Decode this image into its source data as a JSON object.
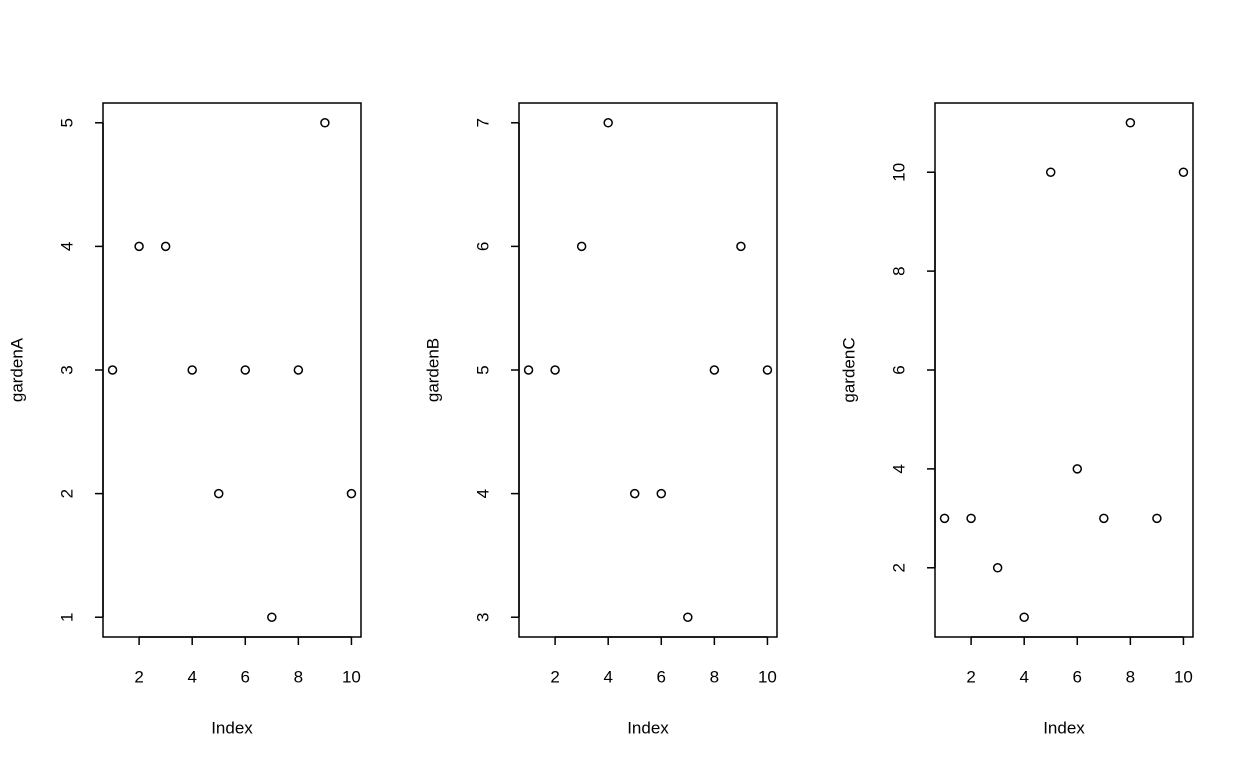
{
  "chart_data": [
    {
      "type": "scatter",
      "xlabel": "Index",
      "ylabel": "gardenA",
      "x": [
        1,
        2,
        3,
        4,
        5,
        6,
        7,
        8,
        9,
        10
      ],
      "values": [
        3,
        4,
        4,
        3,
        2,
        3,
        1,
        3,
        5,
        2
      ],
      "xlim": [
        0.64,
        10.36
      ],
      "ylim": [
        0.84,
        5.16
      ],
      "xticks": [
        2,
        4,
        6,
        8,
        10
      ],
      "yticks": [
        1,
        2,
        3,
        4,
        5
      ],
      "color": "#000000"
    },
    {
      "type": "scatter",
      "xlabel": "Index",
      "ylabel": "gardenB",
      "x": [
        1,
        2,
        3,
        4,
        5,
        6,
        7,
        8,
        9,
        10
      ],
      "values": [
        5,
        5,
        6,
        7,
        4,
        4,
        3,
        5,
        6,
        5
      ],
      "xlim": [
        0.64,
        10.36
      ],
      "ylim": [
        2.84,
        7.16
      ],
      "xticks": [
        2,
        4,
        6,
        8,
        10
      ],
      "yticks": [
        3,
        4,
        5,
        6,
        7
      ],
      "color": "#000000"
    },
    {
      "type": "scatter",
      "xlabel": "Index",
      "ylabel": "gardenC",
      "x": [
        1,
        2,
        3,
        4,
        5,
        6,
        7,
        8,
        9,
        10
      ],
      "values": [
        3,
        3,
        2,
        1,
        10,
        4,
        3,
        11,
        3,
        10
      ],
      "xlim": [
        0.64,
        10.36
      ],
      "ylim": [
        0.6,
        11.4
      ],
      "xticks": [
        2,
        4,
        6,
        8,
        10
      ],
      "yticks": [
        2,
        4,
        6,
        8,
        10
      ],
      "color": "#000000"
    }
  ]
}
